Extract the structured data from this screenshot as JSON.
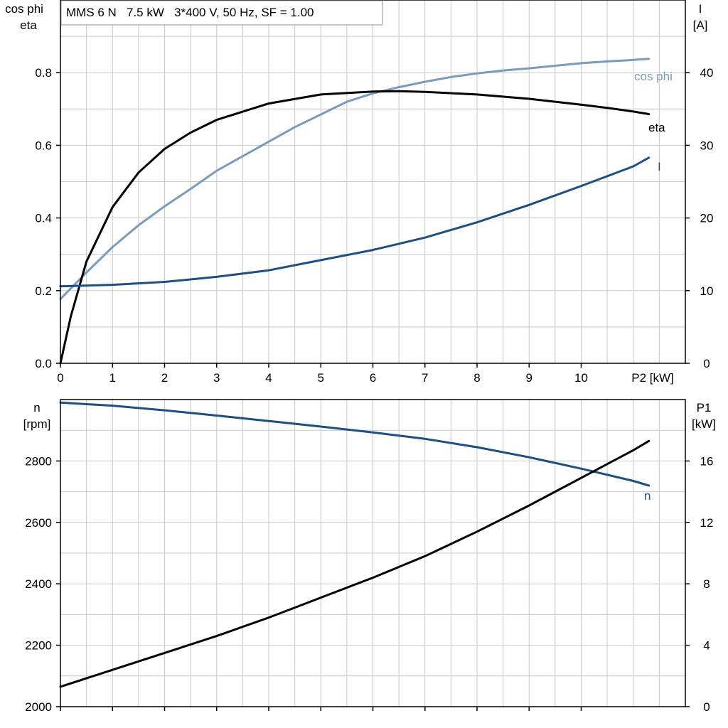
{
  "chart_data": [
    {
      "type": "line",
      "title": "MMS 6 N   7.5 kW   3*400 V, 50 Hz, SF = 1.00",
      "xlabel": "P2 [kW]",
      "xlim": [
        0,
        12
      ],
      "x_ticks": [
        "0",
        "1",
        "2",
        "3",
        "4",
        "5",
        "6",
        "7",
        "8",
        "9",
        "10"
      ],
      "ylabel_left": [
        "cos phi",
        "eta"
      ],
      "ylim_left": [
        0,
        1.0
      ],
      "y_ticks_left": [
        "0.0",
        "0.2",
        "0.4",
        "0.6",
        "0.8"
      ],
      "ylabel_right": [
        "I",
        "[A]"
      ],
      "ylim_right": [
        0,
        50
      ],
      "y_ticks_right": [
        "0",
        "10",
        "20",
        "30",
        "40"
      ],
      "grid": true,
      "series": [
        {
          "name": "cos phi",
          "axis": "left",
          "color": "#7b9bb9",
          "x": [
            0,
            0.5,
            1,
            1.5,
            2,
            2.5,
            3,
            3.5,
            4,
            4.5,
            5,
            5.5,
            6,
            6.5,
            7,
            7.5,
            8,
            8.5,
            9,
            9.5,
            10,
            10.5,
            11,
            11.3
          ],
          "y": [
            0.177,
            0.25,
            0.32,
            0.38,
            0.432,
            0.48,
            0.53,
            0.57,
            0.61,
            0.65,
            0.685,
            0.72,
            0.743,
            0.76,
            0.775,
            0.788,
            0.798,
            0.806,
            0.812,
            0.819,
            0.826,
            0.831,
            0.835,
            0.838
          ]
        },
        {
          "name": "eta",
          "axis": "left",
          "color": "#000000",
          "x": [
            0,
            0.2,
            0.5,
            1,
            1.5,
            2,
            2.5,
            3,
            4,
            5,
            6,
            6.5,
            7,
            8,
            9,
            10,
            10.5,
            11,
            11.3
          ],
          "y": [
            0,
            0.13,
            0.28,
            0.43,
            0.525,
            0.59,
            0.635,
            0.67,
            0.715,
            0.74,
            0.748,
            0.749,
            0.747,
            0.74,
            0.728,
            0.712,
            0.703,
            0.693,
            0.686
          ]
        },
        {
          "name": "I",
          "axis": "right",
          "color": "#1f4e83",
          "x": [
            0,
            1,
            2,
            3,
            4,
            5,
            6,
            7,
            8,
            9,
            10,
            11,
            11.3
          ],
          "y": [
            10.6,
            10.8,
            11.2,
            11.9,
            12.8,
            14.2,
            15.6,
            17.3,
            19.4,
            21.8,
            24.4,
            27.1,
            28.3
          ]
        }
      ]
    },
    {
      "type": "line",
      "xlim": [
        0,
        12
      ],
      "ylabel_left": [
        "n",
        "[rpm]"
      ],
      "ylim_left": [
        2000,
        3000
      ],
      "y_ticks_left": [
        "2000",
        "2200",
        "2400",
        "2600",
        "2800"
      ],
      "ylabel_right": [
        "P1",
        "[kW]"
      ],
      "ylim_right": [
        0,
        20
      ],
      "y_ticks_right": [
        "0",
        "4",
        "8",
        "12",
        "16"
      ],
      "grid": true,
      "series": [
        {
          "name": "n",
          "axis": "left",
          "color": "#1f4e83",
          "x": [
            0,
            1,
            2,
            3,
            4,
            5,
            6,
            7,
            8,
            9,
            10,
            11,
            11.3
          ],
          "y": [
            2990,
            2980,
            2965,
            2948,
            2930,
            2912,
            2893,
            2872,
            2845,
            2812,
            2775,
            2735,
            2720
          ]
        },
        {
          "name": "",
          "axis": "right",
          "color": "#000000",
          "x": [
            0,
            1,
            2,
            3,
            4,
            5,
            6,
            7,
            8,
            9,
            10,
            11,
            11.3
          ],
          "y": [
            1.3,
            2.4,
            3.5,
            4.6,
            5.8,
            7.1,
            8.4,
            9.8,
            11.4,
            13.1,
            14.9,
            16.7,
            17.3
          ]
        }
      ]
    }
  ]
}
